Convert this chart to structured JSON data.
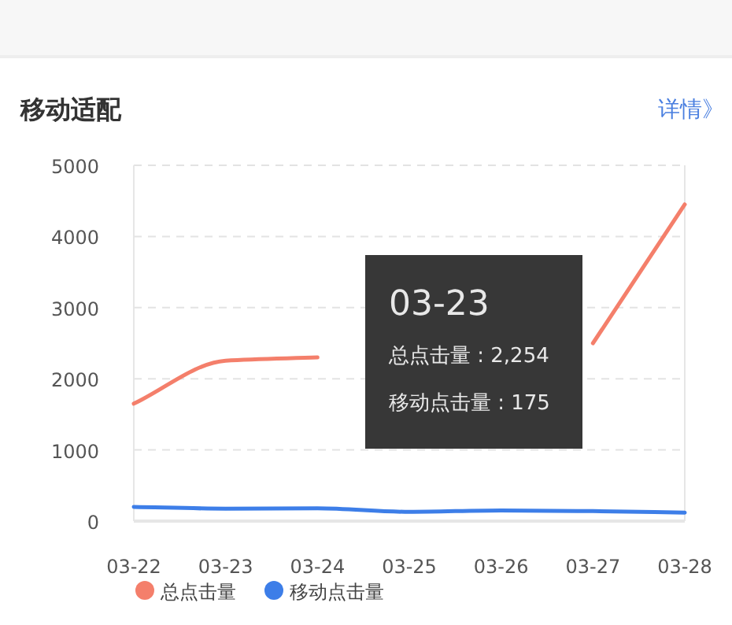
{
  "chart_data": {
    "type": "line",
    "title": "移动适配",
    "categories": [
      "03-22",
      "03-23",
      "03-24",
      "03-25",
      "03-26",
      "03-27",
      "03-28"
    ],
    "series": [
      {
        "name": "总点击量",
        "color": "#f47f6b",
        "values": [
          1650,
          2254,
          2300,
          null,
          null,
          2500,
          4450
        ]
      },
      {
        "name": "移动点击量",
        "color": "#3d7ee8",
        "values": [
          200,
          175,
          180,
          130,
          150,
          140,
          120
        ]
      }
    ],
    "ylim": [
      0,
      5000
    ],
    "yticks": [
      0,
      1000,
      2000,
      3000,
      4000,
      5000
    ],
    "grid": "y",
    "legend": "bottom left",
    "line_style": "solid",
    "annotations": [
      "详情》",
      "03-23",
      "总点击量 : 2,254",
      "移动点击量 : 175"
    ]
  }
}
